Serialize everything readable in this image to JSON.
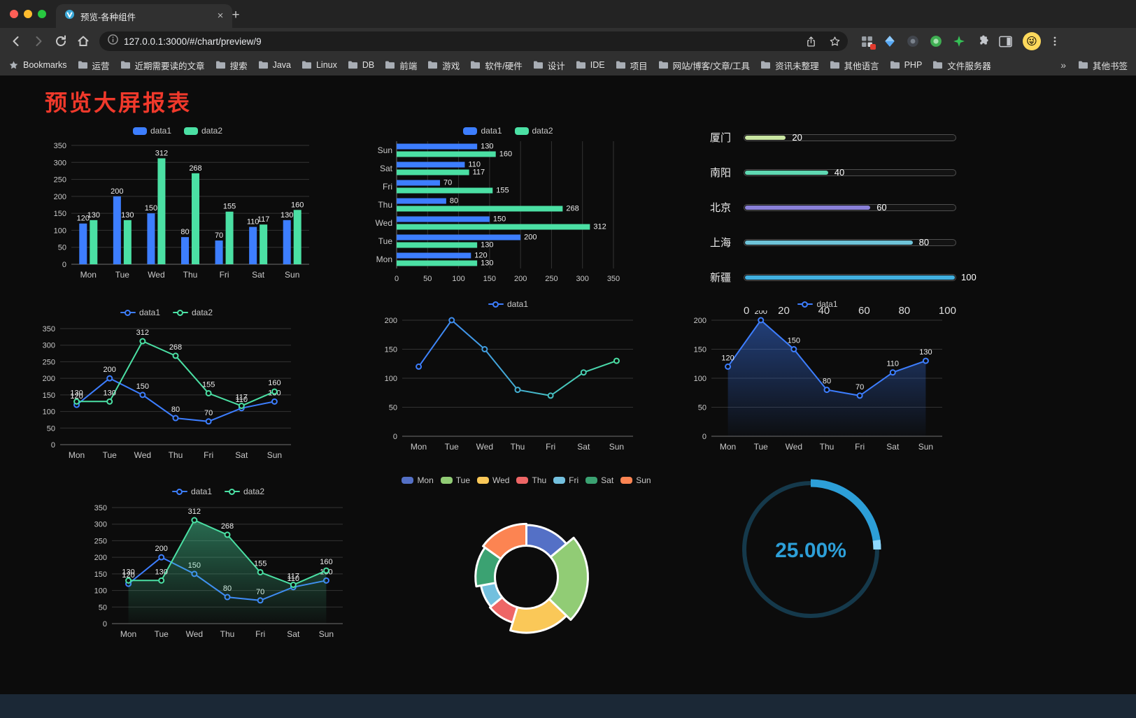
{
  "browser": {
    "tab": {
      "title": "预览-各种组件"
    },
    "url": "127.0.0.1:3000/#/chart/preview/9",
    "bookmarks_bar": {
      "manager": "Bookmarks",
      "folders": [
        "运营",
        "近期需要读的文章",
        "搜索",
        "Java",
        "Linux",
        "DB",
        "前端",
        "游戏",
        "软件/硬件",
        "设计",
        "IDE",
        "项目",
        "网站/博客/文章/工具",
        "资讯未整理",
        "其他语言",
        "PHP",
        "文件服务器"
      ],
      "overflow": "»",
      "other": "其他书签"
    }
  },
  "page": {
    "title": "预览大屏报表"
  },
  "chart_data": [
    {
      "type": "bar",
      "variant": "grouped-vertical",
      "categories": [
        "Mon",
        "Tue",
        "Wed",
        "Thu",
        "Fri",
        "Sat",
        "Sun"
      ],
      "series": [
        {
          "name": "data1",
          "color": "#3D7EFF",
          "values": [
            120,
            200,
            150,
            80,
            70,
            110,
            130
          ]
        },
        {
          "name": "data2",
          "color": "#4BE0A4",
          "values": [
            130,
            130,
            312,
            268,
            155,
            117,
            160
          ]
        }
      ],
      "ylim": [
        0,
        350
      ],
      "yticks": [
        0,
        50,
        100,
        150,
        200,
        250,
        300,
        350
      ],
      "legend_position": "top",
      "grid": true
    },
    {
      "type": "bar",
      "variant": "grouped-horizontal",
      "categories": [
        "Mon",
        "Tue",
        "Wed",
        "Thu",
        "Fri",
        "Sat",
        "Sun"
      ],
      "series": [
        {
          "name": "data1",
          "color": "#3D7EFF",
          "values": [
            120,
            200,
            150,
            80,
            70,
            110,
            130
          ]
        },
        {
          "name": "data2",
          "color": "#4BE0A4",
          "values": [
            130,
            130,
            312,
            268,
            155,
            117,
            160
          ]
        }
      ],
      "xlim": [
        0,
        350
      ],
      "xticks": [
        0,
        50,
        100,
        150,
        200,
        250,
        300,
        350
      ],
      "legend_position": "top",
      "grid": true
    },
    {
      "type": "bar",
      "variant": "progress-list",
      "xlim": [
        0,
        100
      ],
      "xticks": [
        0,
        20,
        40,
        60,
        80,
        100
      ],
      "items": [
        {
          "label": "厦门",
          "value": 20,
          "color": "#C9E6A2"
        },
        {
          "label": "南阳",
          "value": 40,
          "color": "#5FD8B2"
        },
        {
          "label": "北京",
          "value": 60,
          "color": "#8A80D8"
        },
        {
          "label": "上海",
          "value": 80,
          "color": "#6EC3D8"
        },
        {
          "label": "新疆",
          "value": 100,
          "color": "#41B0E0"
        }
      ]
    },
    {
      "type": "line",
      "variant": "two-series",
      "categories": [
        "Mon",
        "Tue",
        "Wed",
        "Thu",
        "Fri",
        "Sat",
        "Sun"
      ],
      "series": [
        {
          "name": "data1",
          "color": "#3D7EFF",
          "values": [
            120,
            200,
            150,
            80,
            70,
            110,
            130
          ]
        },
        {
          "name": "data2",
          "color": "#4BE0A4",
          "values": [
            130,
            130,
            312,
            268,
            155,
            117,
            160
          ]
        }
      ],
      "ylim": [
        0,
        350
      ],
      "yticks": [
        0,
        50,
        100,
        150,
        200,
        250,
        300,
        350
      ],
      "show_labels": true,
      "legend_position": "top",
      "grid": true
    },
    {
      "type": "line",
      "variant": "gradient",
      "categories": [
        "Mon",
        "Tue",
        "Wed",
        "Thu",
        "Fri",
        "Sat",
        "Sun"
      ],
      "series": [
        {
          "name": "data1",
          "color_start": "#3D7EFF",
          "color_end": "#4BE0A4",
          "values": [
            120,
            200,
            150,
            80,
            70,
            110,
            130
          ]
        }
      ],
      "ylim": [
        0,
        200
      ],
      "yticks": [
        0,
        50,
        100,
        150,
        200
      ],
      "show_labels": false,
      "legend_position": "top",
      "grid": true
    },
    {
      "type": "area",
      "variant": "area-single",
      "categories": [
        "Mon",
        "Tue",
        "Wed",
        "Thu",
        "Fri",
        "Sat",
        "Sun"
      ],
      "series": [
        {
          "name": "data1",
          "color": "#3D7EFF",
          "area": true,
          "values": [
            120,
            200,
            150,
            80,
            70,
            110,
            130
          ]
        }
      ],
      "ylim": [
        0,
        200
      ],
      "yticks": [
        0,
        50,
        100,
        150,
        200
      ],
      "show_labels": true,
      "legend_position": "top",
      "grid": true
    },
    {
      "type": "line",
      "variant": "two-series-area",
      "categories": [
        "Mon",
        "Tue",
        "Wed",
        "Thu",
        "Fri",
        "Sat",
        "Sun"
      ],
      "series": [
        {
          "name": "data1",
          "color": "#3D7EFF",
          "values": [
            120,
            200,
            150,
            80,
            70,
            110,
            130
          ]
        },
        {
          "name": "data2",
          "color": "#4BE0A4",
          "area": true,
          "values": [
            130,
            130,
            312,
            268,
            155,
            117,
            160
          ]
        }
      ],
      "ylim": [
        0,
        350
      ],
      "yticks": [
        0,
        50,
        100,
        150,
        200,
        250,
        300,
        350
      ],
      "show_labels": true,
      "legend_position": "top",
      "grid": true
    },
    {
      "type": "pie",
      "variant": "doughnut-rose",
      "legend_position": "top",
      "slices": [
        {
          "name": "Mon",
          "value": 120,
          "color": "#5470C6"
        },
        {
          "name": "Tue",
          "value": 200,
          "color": "#91CC75"
        },
        {
          "name": "Wed",
          "value": 150,
          "color": "#FAC858"
        },
        {
          "name": "Thu",
          "value": 80,
          "color": "#EE6666"
        },
        {
          "name": "Fri",
          "value": 70,
          "color": "#73C0DE"
        },
        {
          "name": "Sat",
          "value": 110,
          "color": "#3BA272"
        },
        {
          "name": "Sun",
          "value": 130,
          "color": "#FC8452"
        }
      ]
    },
    {
      "type": "gauge",
      "variant": "circular-progress",
      "value": 25,
      "display": "25.00%",
      "color": "#2D9FD8",
      "tip_color": "#8ED8FF",
      "track_color": "#15394B"
    }
  ]
}
